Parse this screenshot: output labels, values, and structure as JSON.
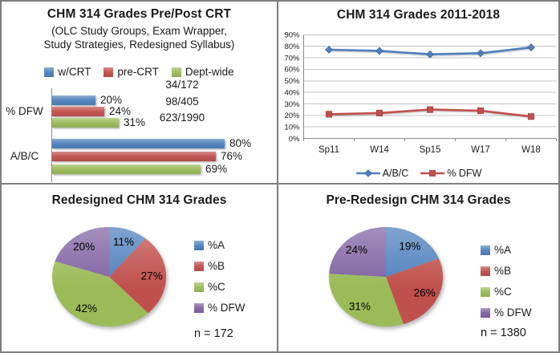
{
  "palette": {
    "blue": "#4F81BD",
    "red": "#C0504D",
    "green": "#9BBB59",
    "purple": "#8064A2",
    "grid": "#C3C3C3",
    "axis": "#8C8C8C",
    "text": "#1A1A1A",
    "border": "#7F7F7F"
  },
  "chart_data": [
    {
      "id": "pre-post-bar",
      "type": "bar",
      "orientation": "horizontal",
      "title": "CHM 314 Grades Pre/Post CRT",
      "subtitle": [
        "(OLC Study Groups, Exam Wrapper,",
        "Study Strategies, Redesigned Syllabus)"
      ],
      "categories": [
        "% DFW",
        "A/B/C"
      ],
      "series": [
        {
          "name": "w/CRT",
          "color": "#4F81BD",
          "values": [
            20,
            80
          ]
        },
        {
          "name": "pre-CRT",
          "color": "#C0504D",
          "values": [
            24,
            76
          ]
        },
        {
          "name": "Dept-wide",
          "color": "#9BBB59",
          "values": [
            31,
            69
          ]
        }
      ],
      "data_labels": [
        "20%",
        "24%",
        "31%",
        "80%",
        "76%",
        "69%"
      ],
      "annotations": [
        "34/172",
        "98/405",
        "623/1990"
      ],
      "xlim": [
        0,
        100
      ],
      "legend_position": "top",
      "grid": false
    },
    {
      "id": "trend-line",
      "type": "line",
      "title": "CHM 314 Grades 2011-2018",
      "categories": [
        "Sp11",
        "W14",
        "Sp15",
        "W17",
        "W18"
      ],
      "series": [
        {
          "name": "A/B/C",
          "color": "#4F81BD",
          "marker": "diamond",
          "values": [
            77,
            76,
            73,
            74,
            79
          ]
        },
        {
          "name": "% DFW",
          "color": "#C0504D",
          "marker": "square",
          "values": [
            21,
            22,
            25,
            24,
            19
          ]
        }
      ],
      "ylim": [
        0,
        90
      ],
      "yticks": [
        0,
        10,
        20,
        30,
        40,
        50,
        60,
        70,
        80,
        90
      ],
      "ytick_suffix": "%",
      "grid": true,
      "legend_position": "bottom"
    },
    {
      "id": "redesigned-pie",
      "type": "pie",
      "title": "Redesigned CHM 314 Grades",
      "labels": [
        "%A",
        "%B",
        "%C",
        "% DFW"
      ],
      "values": [
        11,
        27,
        42,
        20
      ],
      "slice_labels": [
        "11%",
        "27%",
        "42%",
        "20%"
      ],
      "colors": [
        "#4F81BD",
        "#C0504D",
        "#9BBB59",
        "#8064A2"
      ],
      "start_angle": 0,
      "direction": "clockwise",
      "note": "n = 172",
      "legend_position": "right"
    },
    {
      "id": "pre-redesign-pie",
      "type": "pie",
      "title": "Pre-Redesign CHM 314 Grades",
      "labels": [
        "%A",
        "%B",
        "%C",
        "% DFW"
      ],
      "values": [
        19,
        26,
        31,
        24
      ],
      "slice_labels": [
        "19%",
        "26%",
        "31%",
        "24%"
      ],
      "colors": [
        "#4F81BD",
        "#C0504D",
        "#9BBB59",
        "#8064A2"
      ],
      "start_angle": 0,
      "direction": "clockwise",
      "note": "n = 1380",
      "legend_position": "right"
    }
  ]
}
